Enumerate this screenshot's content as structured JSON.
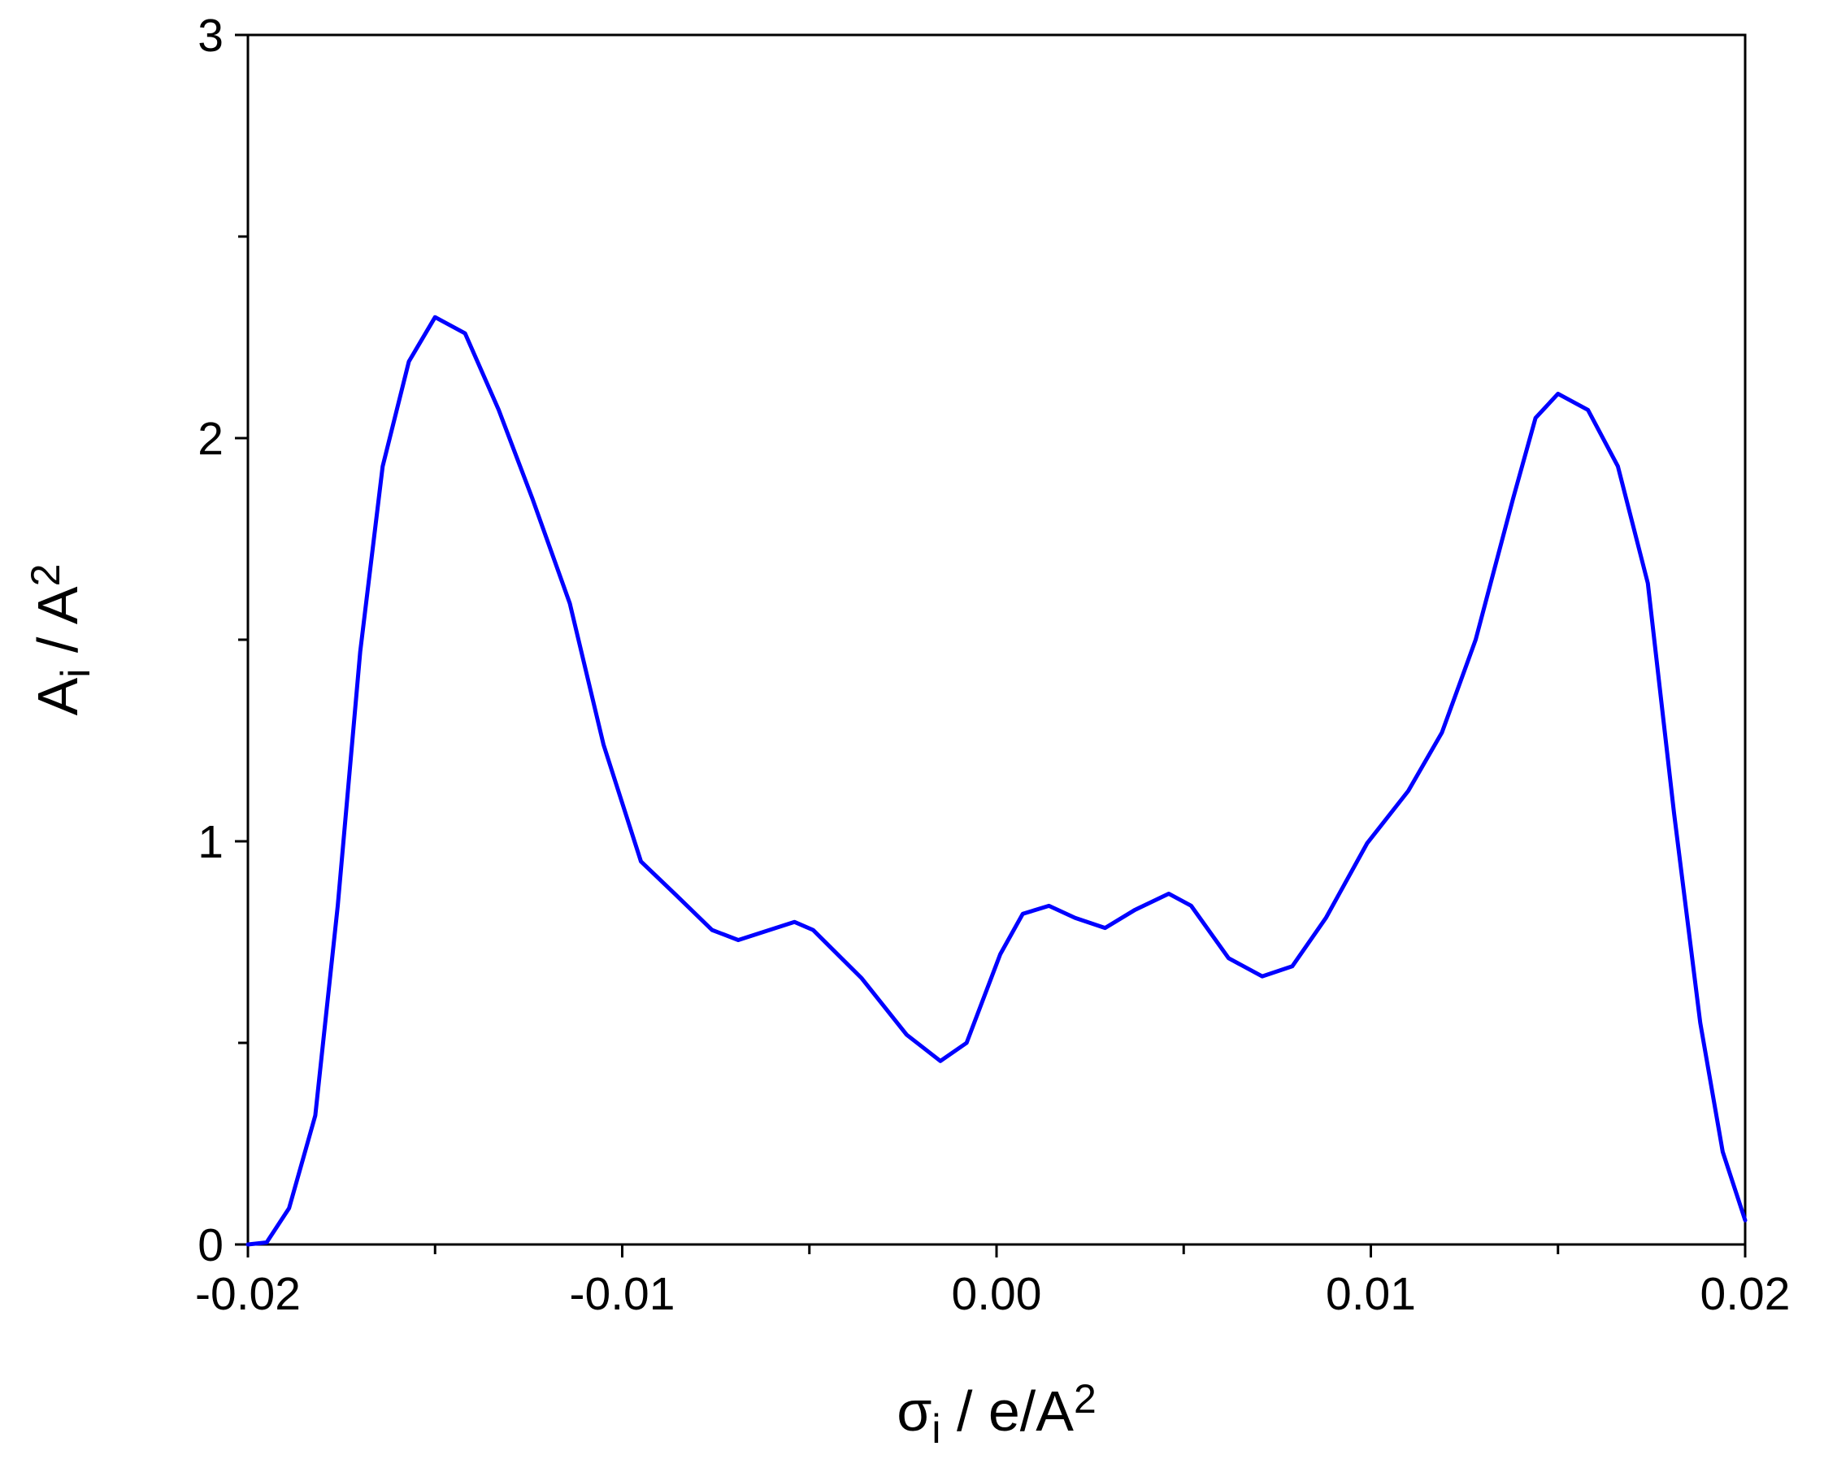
{
  "chart_data": {
    "type": "line",
    "x_label": {
      "base": "σ",
      "sub": "i",
      "rest": " / e/A",
      "sup": "2"
    },
    "y_label": {
      "base": "A",
      "sub": "i",
      "rest": " / A",
      "sup": "2"
    },
    "x": [
      -0.02,
      -0.0195,
      -0.0189,
      -0.0182,
      -0.0176,
      -0.017,
      -0.0164,
      -0.0157,
      -0.015,
      -0.0142,
      -0.0133,
      -0.0124,
      -0.0114,
      -0.0105,
      -0.0095,
      -0.0086,
      -0.0076,
      -0.0069,
      -0.0054,
      -0.0049,
      -0.0036,
      -0.0024,
      -0.0015,
      -0.0008,
      0.0001,
      0.0007,
      0.0014,
      0.0021,
      0.0029,
      0.0037,
      0.0046,
      0.0052,
      0.0062,
      0.0071,
      0.0079,
      0.0088,
      0.0099,
      0.011,
      0.0119,
      0.0128,
      0.0138,
      0.0144,
      0.015,
      0.0158,
      0.0166,
      0.0174,
      0.0181,
      0.0188,
      0.0194,
      0.02
    ],
    "series": [
      {
        "color": "#0000ff",
        "values": [
          0,
          0.005,
          0.09,
          0.32,
          0.84,
          1.47,
          1.93,
          2.19,
          2.3,
          2.26,
          2.07,
          1.85,
          1.59,
          1.24,
          0.95,
          0.87,
          0.78,
          0.755,
          0.8,
          0.78,
          0.66,
          0.52,
          0.455,
          0.5,
          0.72,
          0.82,
          0.84,
          0.81,
          0.785,
          0.83,
          0.87,
          0.84,
          0.71,
          0.665,
          0.69,
          0.81,
          0.995,
          1.125,
          1.27,
          1.5,
          1.85,
          2.05,
          2.11,
          2.07,
          1.93,
          1.64,
          1.07,
          0.55,
          0.23,
          0.06
        ]
      }
    ],
    "xlim": [
      -0.02,
      0.02
    ],
    "ylim": [
      0,
      3
    ],
    "xticks": [
      -0.02,
      -0.01,
      {
        "value": 0,
        "label": "0.00"
      },
      0.01,
      0.02
    ],
    "yticks": [
      0,
      1,
      2,
      3
    ],
    "xminorticks": [
      -0.015,
      -0.005,
      0.005,
      0.015
    ],
    "yminorticks": [
      0.5,
      1.5,
      2.5
    ],
    "grid": false
  }
}
